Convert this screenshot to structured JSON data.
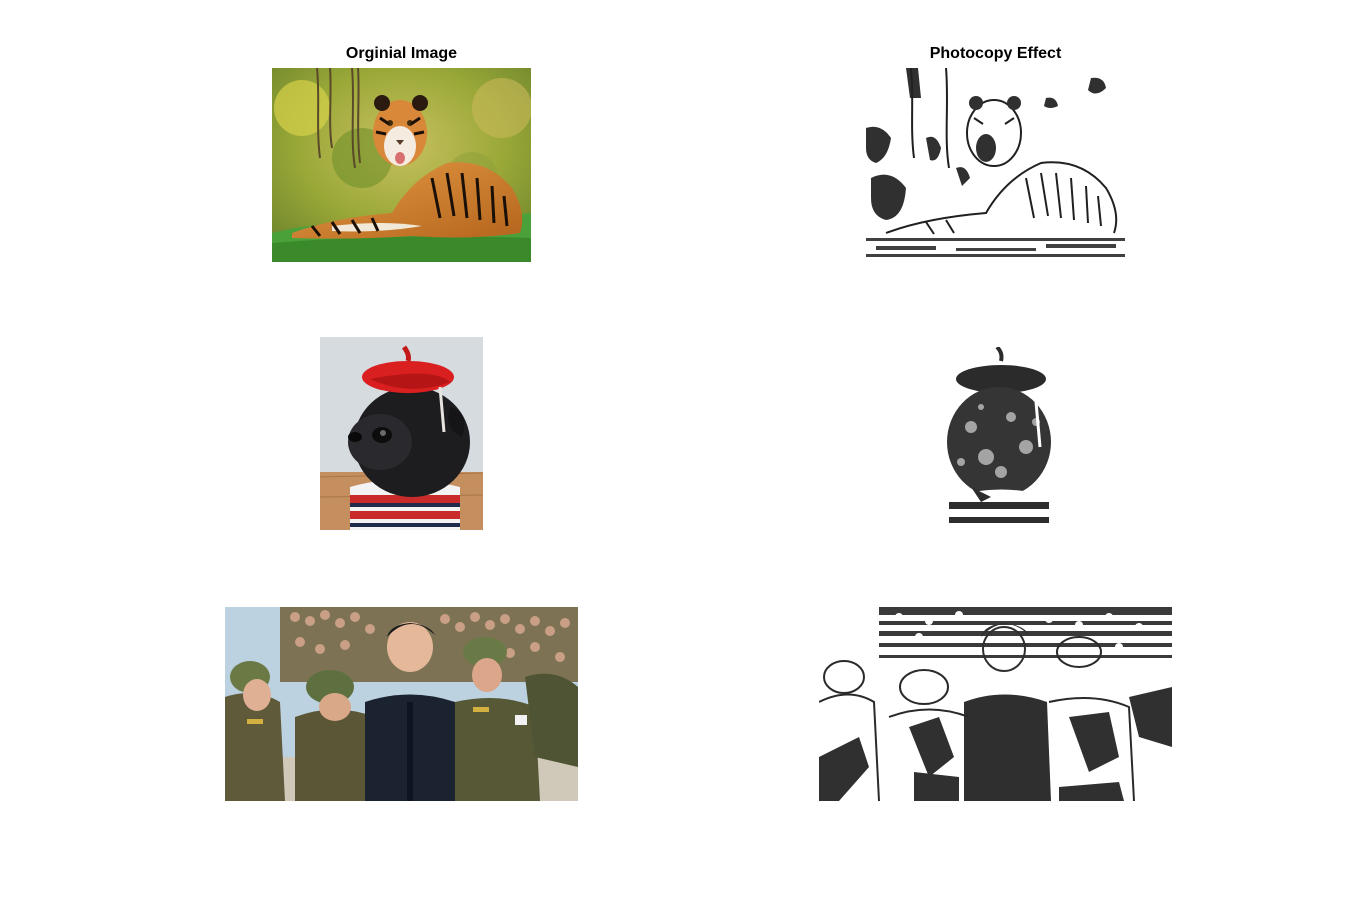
{
  "figure": {
    "titles": {
      "left": "Orginial Image",
      "right": "Photocopy Effect"
    },
    "colors": {
      "background": "#ffffff",
      "title_text": "#000000"
    }
  }
}
